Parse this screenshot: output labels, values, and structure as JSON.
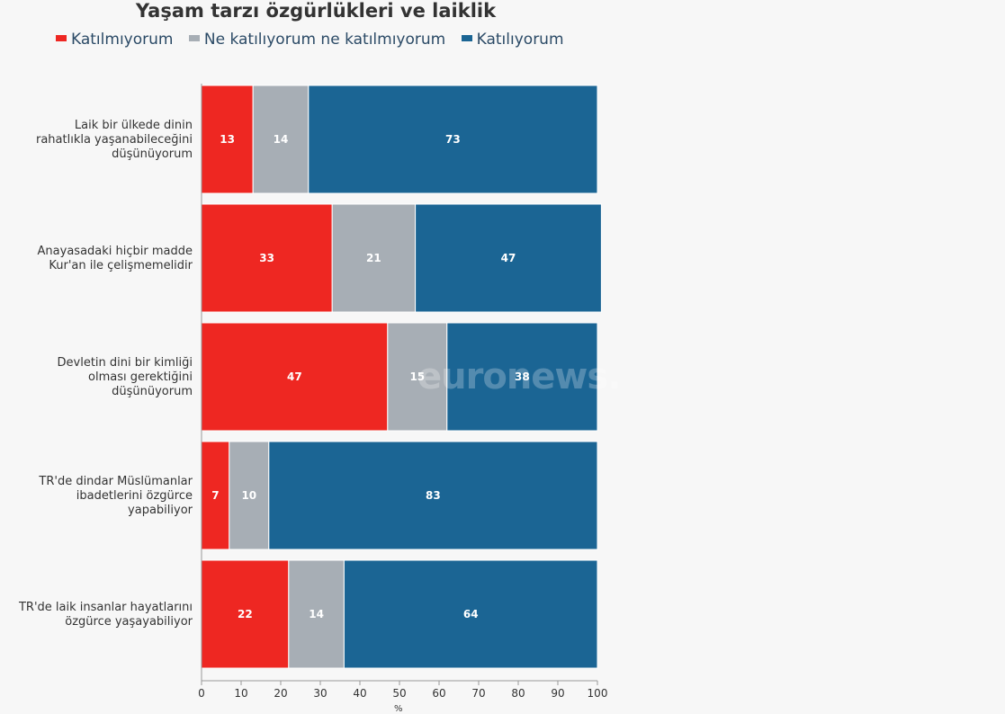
{
  "chart_data": {
    "type": "bar",
    "orientation": "horizontal",
    "stacked": true,
    "title": "Yaşam tarzı özgürlükleri ve laiklik",
    "xlabel": "%",
    "xlim": [
      0,
      100
    ],
    "xticks": [
      0,
      10,
      20,
      30,
      40,
      50,
      60,
      70,
      80,
      90,
      100
    ],
    "categories": [
      [
        "Laik bir ülkede dinin",
        "rahatlıkla yaşanabileceğini",
        "düşünüyorum"
      ],
      [
        "Anayasadaki hiçbir madde",
        "Kur'an ile çelişmemelidir"
      ],
      [
        "Devletin dini bir kimliği",
        "olması gerektiğini",
        "düşünüyorum"
      ],
      [
        "TR'de dindar Müslümanlar",
        "ibadetlerini özgürce",
        "yapabiliyor"
      ],
      [
        "TR'de laik insanlar hayatlarını",
        "özgürce yaşayabiliyor"
      ]
    ],
    "series": [
      {
        "name": "Katılmıyorum",
        "color": "#ee2722",
        "values": [
          13,
          33,
          47,
          7,
          22
        ]
      },
      {
        "name": "Ne katılıyorum ne katılmıyorum",
        "color": "#a7aeb5",
        "values": [
          14,
          21,
          15,
          10,
          14
        ]
      },
      {
        "name": "Katılıyorum",
        "color": "#1b6594",
        "values": [
          73,
          47,
          38,
          83,
          64
        ]
      }
    ],
    "watermark": "euronews."
  }
}
